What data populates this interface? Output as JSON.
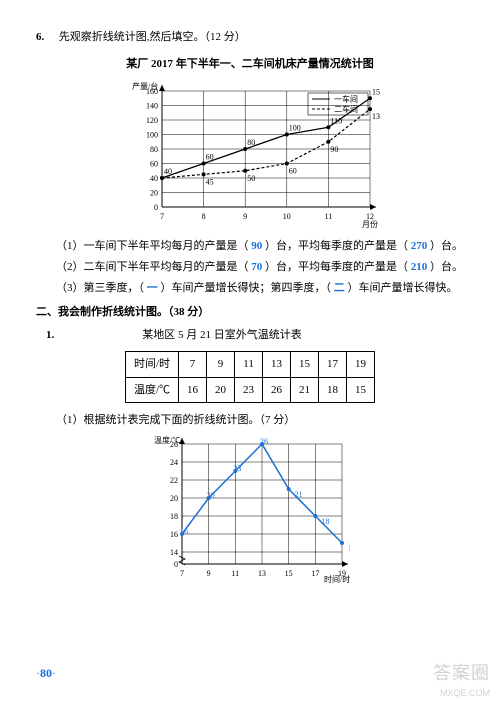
{
  "q6": {
    "num": "6.",
    "prompt": "先观察折线统计图,然后填空。（12 分）",
    "title": "某厂 2017 年下半年一、二车间机床产量情况统计图",
    "chart": {
      "type": "line",
      "xlabel": "月份",
      "ylabel": "产量/台",
      "legend": [
        "一车间",
        "二车间"
      ],
      "x_categories": [
        "7",
        "8",
        "9",
        "10",
        "11",
        "12"
      ],
      "ylim": [
        0,
        160
      ],
      "ytick_step": 20,
      "series1_values": [
        40,
        60,
        80,
        100,
        110,
        150
      ],
      "series2_values": [
        40,
        45,
        50,
        60,
        90,
        135
      ],
      "series1_labels": [
        "40",
        "60",
        "80",
        "100",
        "110",
        "150"
      ],
      "series2_labels": [
        "",
        "45",
        "50",
        "60",
        "90",
        "135"
      ],
      "series1_style": {
        "color": "#000",
        "dash": "",
        "marker": "dot"
      },
      "series2_style": {
        "color": "#000",
        "dash": "3,2",
        "marker": "dot"
      },
      "grid_color": "#000",
      "line_width": 1,
      "bg": "#ffffff"
    },
    "sub1_a": "（1）一车间下半年平均每月的产量是（ ",
    "sub1_ans1": "90",
    "sub1_b": " ）台，平均每季度的产量是（ ",
    "sub1_ans2": "270",
    "sub1_c": " ）台。",
    "sub2_a": "（2）二车间下半年平均每月的产量是（ ",
    "sub2_ans1": "70",
    "sub2_b": " ）台，平均每季度的产量是（ ",
    "sub2_ans2": "210",
    "sub2_c": " ）台。",
    "sub3_a": "（3）第三季度，（ ",
    "sub3_ans1": "一",
    "sub3_b": " ）车间产量增长得快；第四季度，（ ",
    "sub3_ans2": "二",
    "sub3_c": " ）车间产量增长得快。"
  },
  "section2": {
    "heading": "二、我会制作折线统计图。（38 分）"
  },
  "q2_1": {
    "num": "1.",
    "table_title": "某地区 5 月 21 日室外气温统计表",
    "table": {
      "header_row": [
        "时间/时",
        "7",
        "9",
        "11",
        "13",
        "15",
        "17",
        "19"
      ],
      "data_row": [
        "温度/℃",
        "16",
        "20",
        "23",
        "26",
        "21",
        "18",
        "15"
      ]
    },
    "sub1": "（1）根据统计表完成下面的折线统计图。（7 分）",
    "chart": {
      "type": "line",
      "xlabel": "时间/时",
      "ylabel": "温度/℃",
      "x_categories": [
        "7",
        "9",
        "11",
        "13",
        "15",
        "17",
        "19"
      ],
      "ylim": [
        0,
        26
      ],
      "yticks": [
        14,
        16,
        18,
        20,
        22,
        24,
        26
      ],
      "values": [
        16,
        20,
        23,
        26,
        21,
        18,
        15
      ],
      "value_labels": [
        "16",
        "20",
        "23",
        "26",
        "21",
        "18",
        "15"
      ],
      "line_color": "#1a6fd6",
      "grid_color": "#000",
      "line_width": 1.5,
      "bg": "#ffffff"
    }
  },
  "footer": {
    "page": "80",
    "dot": "·",
    "wm": "答案圈",
    "wm_sub": "MXQE.COM"
  }
}
